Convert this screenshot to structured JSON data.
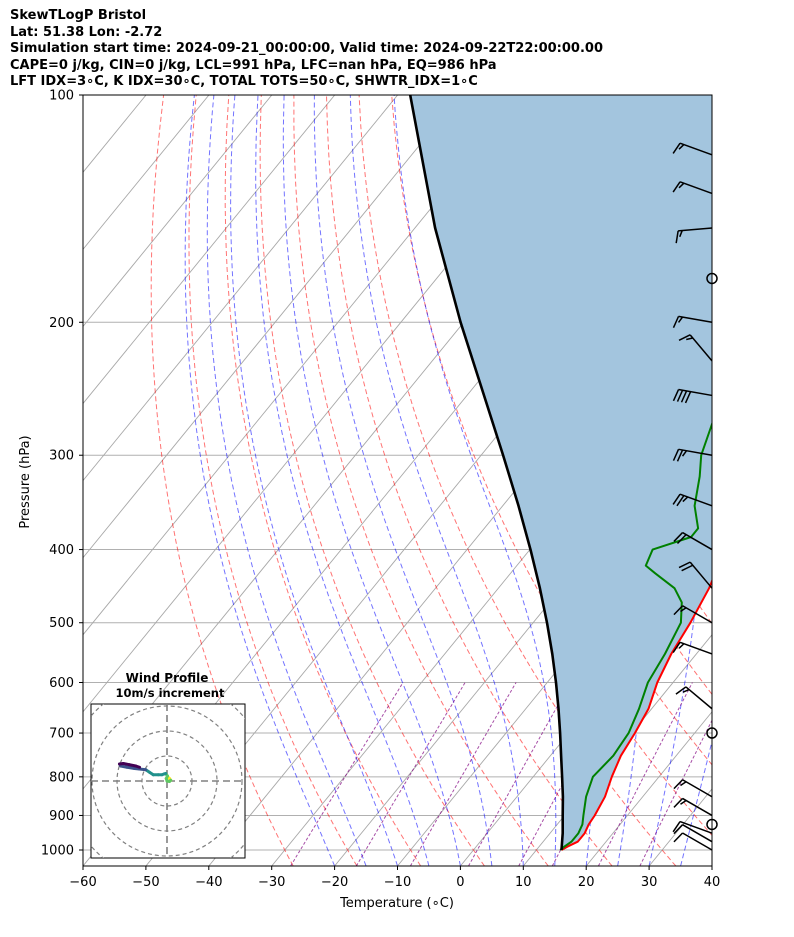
{
  "header": {
    "lines": [
      "SkewTLogP Bristol",
      "Lat: 51.38   Lon: -2.72",
      "Simulation start time: 2024-09-21_00:00:00, Valid time: 2024-09-22T22:00:00.00",
      "CAPE=0 j/kg, CIN=0 j/kg, LCL=991 hPa, LFC=nan hPa, EQ=986 hPa",
      "LFT IDX=3∘C, K IDX=30∘C, TOTAL TOTS=50∘C, SHWTR_IDX=1∘C"
    ]
  },
  "chart_data": {
    "type": "line",
    "subtype": "skew-T log-P diagram",
    "xlabel": "Temperature (∘C)",
    "ylabel": "Pressure (hPa)",
    "xlim": [
      -60,
      40
    ],
    "ylim": [
      1050,
      100
    ],
    "y_scale": "log",
    "x_ticks": [
      "−60",
      "−50",
      "−40",
      "−30",
      "−20",
      "−10",
      "0",
      "10",
      "20",
      "30",
      "40"
    ],
    "y_ticks": [
      "100",
      "200",
      "300",
      "400",
      "500",
      "600",
      "700",
      "800",
      "900",
      "1000"
    ],
    "grid": true,
    "series": [
      {
        "role": "temperature",
        "color": "#ff0000",
        "points": [
          [
            1000,
            14.0
          ],
          [
            990,
            14.5
          ],
          [
            975,
            15.5
          ],
          [
            950,
            15.5
          ],
          [
            925,
            15.0
          ],
          [
            900,
            14.8
          ],
          [
            850,
            14.0
          ],
          [
            800,
            12.5
          ],
          [
            750,
            11.2
          ],
          [
            700,
            10.5
          ],
          [
            650,
            9.5
          ],
          [
            600,
            7.5
          ],
          [
            550,
            6.0
          ],
          [
            500,
            5.0
          ],
          [
            450,
            3.5
          ],
          [
            400,
            1.0
          ],
          [
            370,
            0.0
          ],
          [
            350,
            -1.5
          ],
          [
            300,
            -6.5
          ],
          [
            275,
            -9.0
          ],
          [
            250,
            -11.0
          ],
          [
            232,
            -11.0
          ],
          [
            225,
            -10.0
          ],
          [
            215,
            -7.0
          ],
          [
            200,
            -5.5
          ],
          [
            180,
            -2.0
          ],
          [
            160,
            1.0
          ],
          [
            150,
            3.0
          ],
          [
            140,
            5.5
          ],
          [
            130,
            8.0
          ],
          [
            120,
            10.0
          ],
          [
            110,
            13.0
          ],
          [
            100,
            15.0
          ]
        ]
      },
      {
        "role": "dewpoint",
        "color": "#008000",
        "points": [
          [
            1000,
            13.8
          ],
          [
            990,
            14.0
          ],
          [
            975,
            14.5
          ],
          [
            950,
            14.5
          ],
          [
            925,
            14.0
          ],
          [
            900,
            13.0
          ],
          [
            850,
            11.0
          ],
          [
            800,
            9.5
          ],
          [
            750,
            10.0
          ],
          [
            700,
            9.5
          ],
          [
            650,
            8.0
          ],
          [
            600,
            6.0
          ],
          [
            550,
            5.0
          ],
          [
            500,
            3.5
          ],
          [
            470,
            1.0
          ],
          [
            450,
            -2.0
          ],
          [
            430,
            -7.0
          ],
          [
            420,
            -9.5
          ],
          [
            400,
            -10.5
          ],
          [
            385,
            -6.0
          ],
          [
            375,
            -6.0
          ],
          [
            350,
            -9.5
          ],
          [
            320,
            -12.5
          ],
          [
            300,
            -15.0
          ],
          [
            260,
            -18.5
          ],
          [
            240,
            -18.0
          ],
          [
            230,
            -18.0
          ],
          [
            215,
            -23.0
          ],
          [
            200,
            -26.0
          ],
          [
            185,
            -31.0
          ],
          [
            175,
            -36.0
          ],
          [
            165,
            -36.5
          ],
          [
            150,
            -38.0
          ],
          [
            130,
            -38.5
          ],
          [
            115,
            -38.0
          ],
          [
            100,
            -38.0
          ]
        ]
      },
      {
        "role": "parcel",
        "color": "#000000",
        "points": [
          [
            1000,
            14.0
          ],
          [
            950,
            12.0
          ],
          [
            900,
            9.7
          ],
          [
            850,
            7.3
          ],
          [
            800,
            4.6
          ],
          [
            750,
            1.7
          ],
          [
            700,
            -1.4
          ],
          [
            650,
            -4.8
          ],
          [
            600,
            -8.6
          ],
          [
            550,
            -12.9
          ],
          [
            500,
            -17.8
          ],
          [
            450,
            -23.4
          ],
          [
            400,
            -29.9
          ],
          [
            350,
            -37.5
          ],
          [
            300,
            -46.5
          ],
          [
            250,
            -57.3
          ],
          [
            200,
            -70.5
          ],
          [
            150,
            -86.8
          ],
          [
            100,
            -108.0
          ]
        ]
      }
    ],
    "cape_shading_color": "#a3c5de",
    "wind_barbs_kts": [
      {
        "p": 1000,
        "speed": 10,
        "dir": 300
      },
      {
        "p": 975,
        "speed": 10,
        "dir": 300
      },
      {
        "p": 950,
        "speed": 10,
        "dir": 290
      },
      {
        "p": 925,
        "speed": 0,
        "dir": 0
      },
      {
        "p": 900,
        "speed": 15,
        "dir": 300
      },
      {
        "p": 850,
        "speed": 15,
        "dir": 300
      },
      {
        "p": 700,
        "speed": 0,
        "dir": 0
      },
      {
        "p": 650,
        "speed": 15,
        "dir": 310
      },
      {
        "p": 550,
        "speed": 15,
        "dir": 290
      },
      {
        "p": 500,
        "speed": 15,
        "dir": 300
      },
      {
        "p": 450,
        "speed": 20,
        "dir": 320
      },
      {
        "p": 400,
        "speed": 20,
        "dir": 300
      },
      {
        "p": 350,
        "speed": 25,
        "dir": 290
      },
      {
        "p": 300,
        "speed": 25,
        "dir": 280
      },
      {
        "p": 250,
        "speed": 40,
        "dir": 280
      },
      {
        "p": 225,
        "speed": 15,
        "dir": 320
      },
      {
        "p": 200,
        "speed": 15,
        "dir": 280
      },
      {
        "p": 175,
        "speed": 0,
        "dir": 0
      },
      {
        "p": 150,
        "speed": 15,
        "dir": 265
      },
      {
        "p": 135,
        "speed": 15,
        "dir": 290
      },
      {
        "p": 120,
        "speed": 15,
        "dir": 290
      }
    ]
  },
  "hodograph": {
    "title_line1": "Wind Profile",
    "title_line2": "10m/s increment",
    "ring_count": 4,
    "path_uv": [
      [
        0.5,
        1.5
      ],
      [
        1.0,
        1.0
      ],
      [
        1.5,
        0.3
      ],
      [
        1.0,
        -0.2
      ],
      [
        0.0,
        0.0
      ],
      [
        -0.3,
        1.0
      ],
      [
        0.2,
        2.0
      ],
      [
        -0.5,
        3.0
      ],
      [
        -1.2,
        2.8
      ],
      [
        -2.0,
        2.5
      ],
      [
        -3.5,
        2.5
      ],
      [
        -5.5,
        2.5
      ],
      [
        -7.0,
        3.5
      ],
      [
        -8.5,
        4.5
      ],
      [
        -11.0,
        4.8
      ],
      [
        -13.0,
        5.0
      ],
      [
        -16.0,
        5.5
      ],
      [
        -18.5,
        6.0
      ],
      [
        -19.0,
        6.8
      ],
      [
        -17.5,
        7.0
      ],
      [
        -15.0,
        6.5
      ],
      [
        -12.5,
        6.0
      ],
      [
        -11.0,
        5.5
      ]
    ],
    "colors": [
      "#440154",
      "#3b528b",
      "#21918c",
      "#5ec962",
      "#fde725"
    ]
  }
}
